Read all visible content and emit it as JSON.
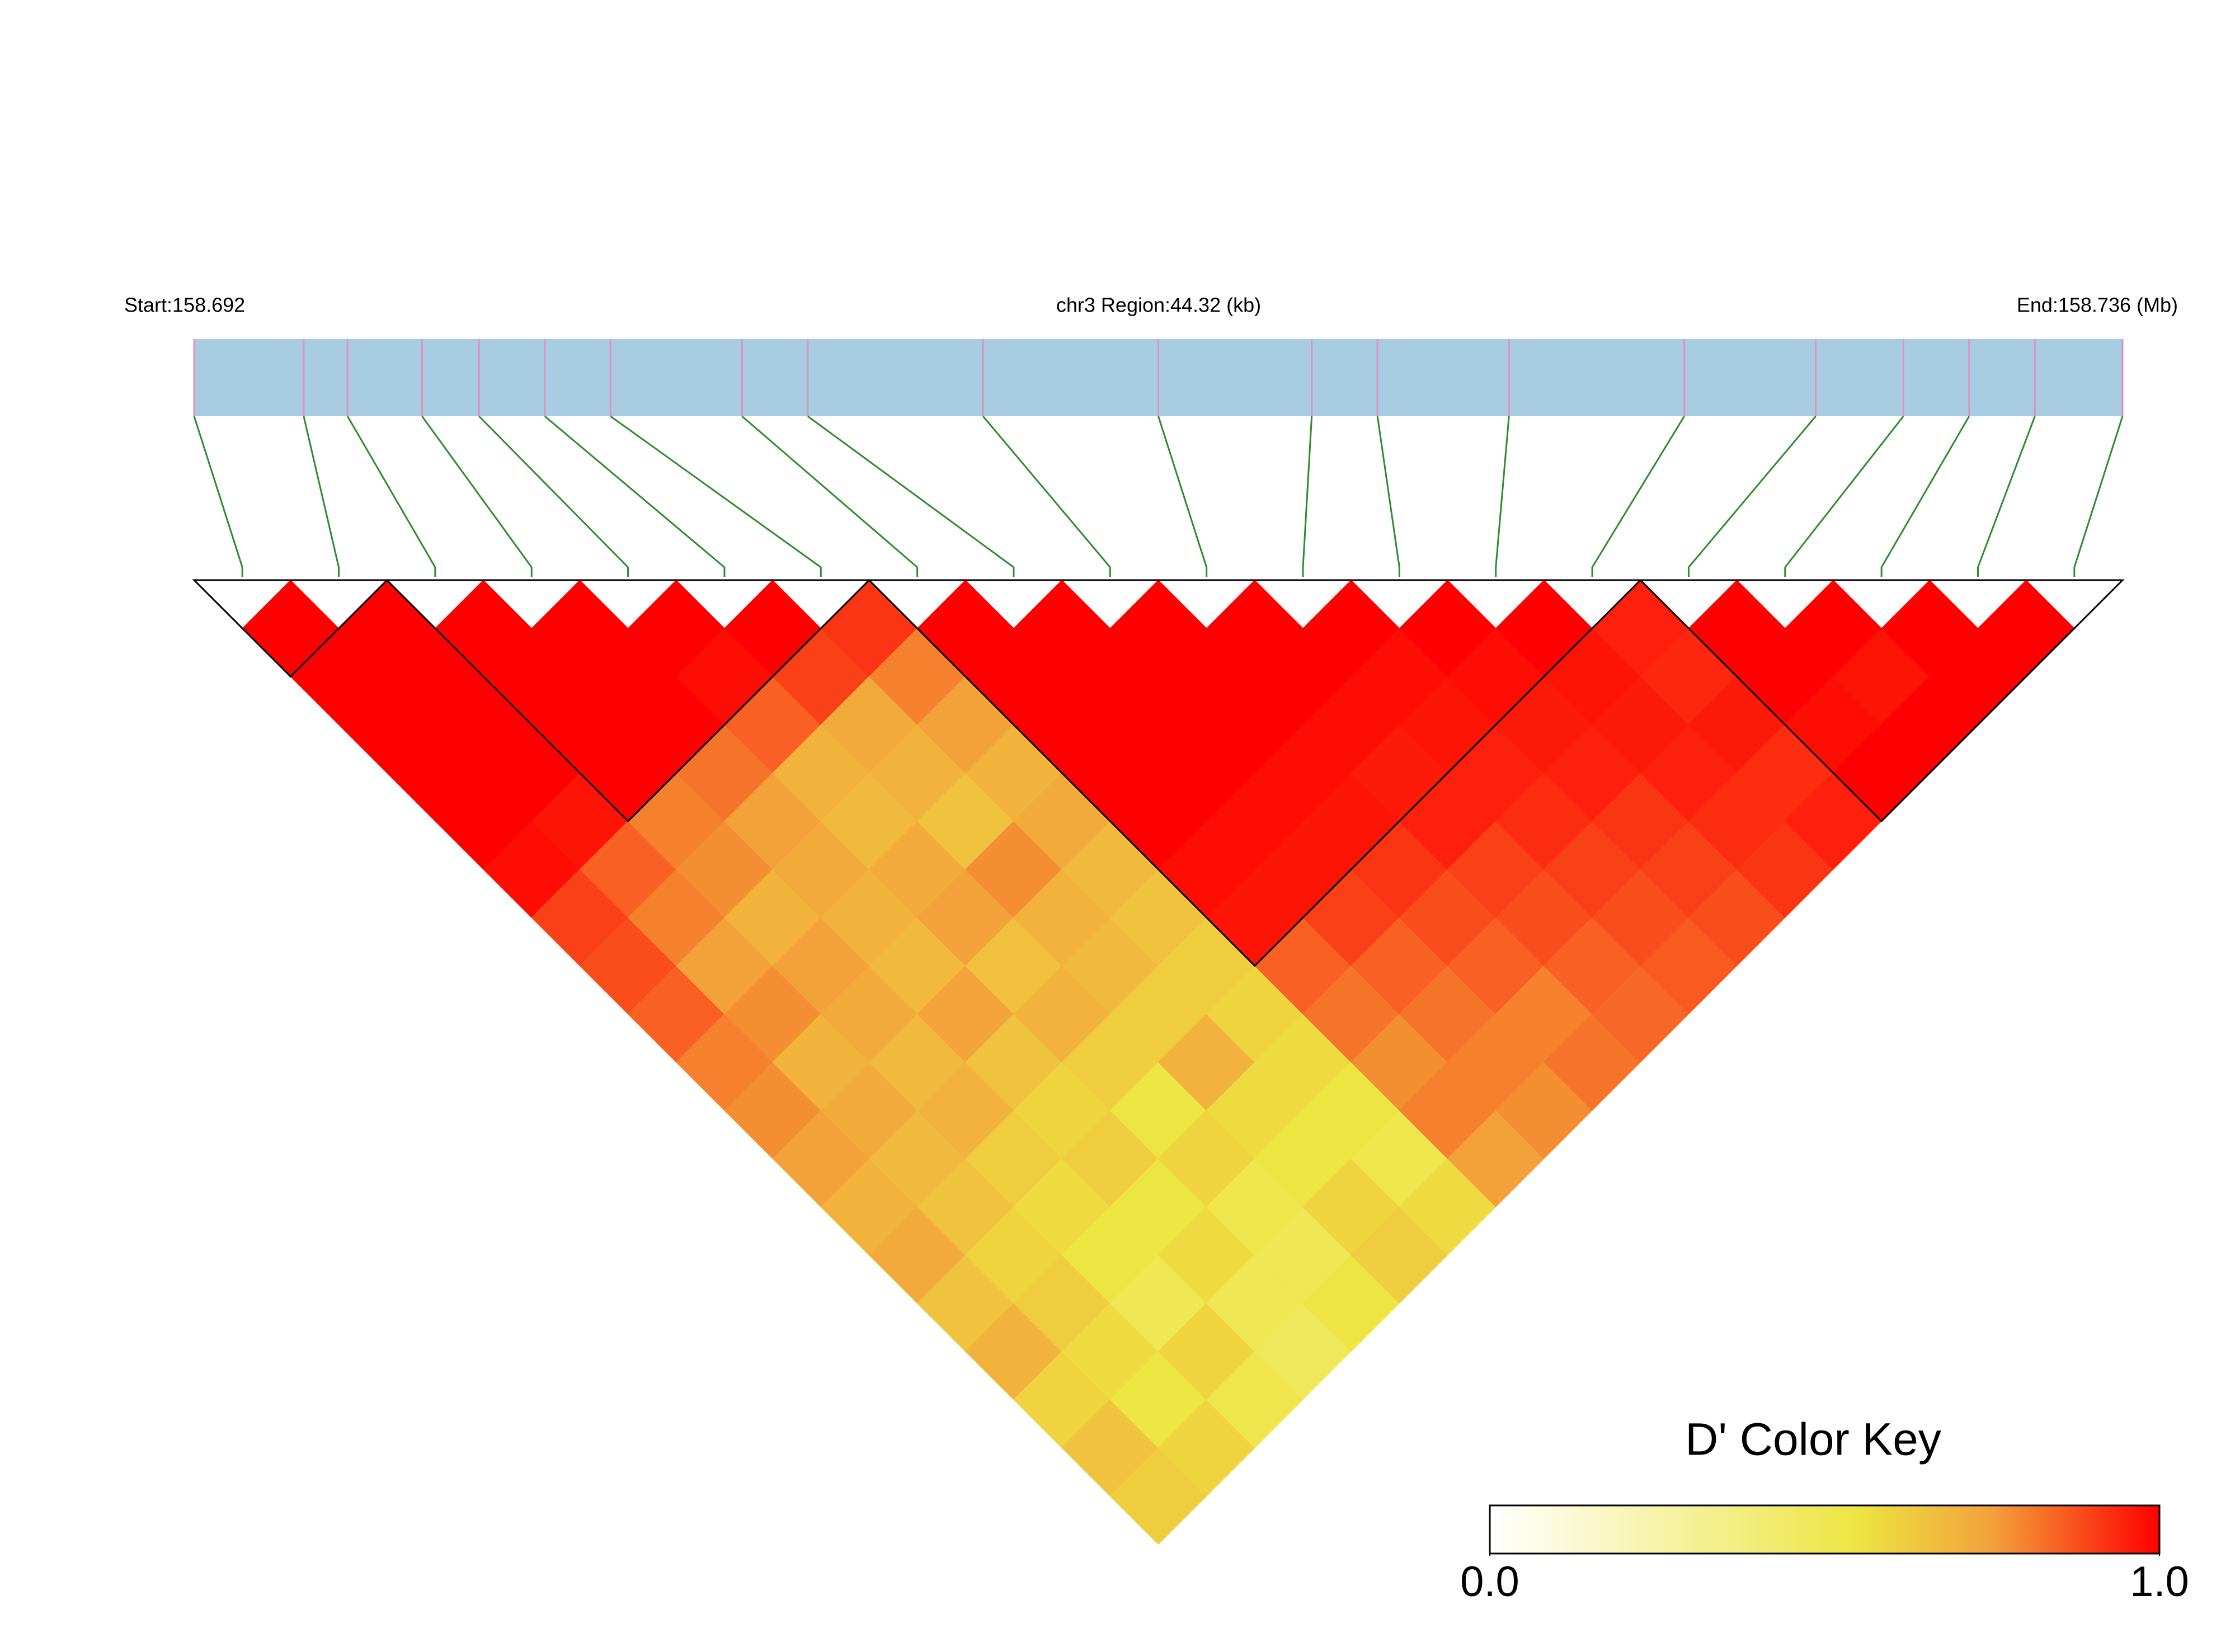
{
  "chart_data": {
    "type": "ld-heatmap",
    "start_label": "Start:158.692",
    "region_label": "chr3 Region:44.32 (kb)",
    "end_label": "End:158.736 (Mb)",
    "xlim": [
      158.692,
      158.736
    ],
    "snp_positions": [
      158.692,
      158.6945,
      158.6955,
      158.6972,
      158.6985,
      158.7,
      158.7015,
      158.7045,
      158.706,
      158.71,
      158.714,
      158.7175,
      158.719,
      158.722,
      158.726,
      158.729,
      158.731,
      158.7325,
      158.734,
      158.736
    ],
    "dprime": [
      [
        1,
        1,
        1,
        1,
        1,
        0.98,
        0.9,
        0.88,
        0.85,
        0.8,
        0.78,
        0.75,
        0.7,
        0.72,
        0.65,
        0.7,
        0.6,
        0.65,
        0.62
      ],
      [
        1,
        1,
        1,
        1,
        0.97,
        0.85,
        0.8,
        0.75,
        0.78,
        0.7,
        0.72,
        0.68,
        0.65,
        0.6,
        0.62,
        0.58,
        0.55,
        0.6
      ],
      [
        1,
        1,
        1,
        1,
        0.8,
        0.78,
        0.7,
        0.75,
        0.72,
        0.68,
        0.7,
        0.62,
        0.58,
        0.55,
        0.5,
        0.6,
        0.52
      ],
      [
        1,
        1,
        1,
        0.82,
        0.75,
        0.72,
        0.7,
        0.68,
        0.74,
        0.65,
        0.6,
        0.62,
        0.55,
        0.58,
        0.5,
        0.48
      ],
      [
        1,
        0.98,
        0.85,
        0.7,
        0.68,
        0.72,
        0.75,
        0.66,
        0.7,
        0.62,
        0.55,
        0.6,
        0.52,
        0.5,
        0.55
      ],
      [
        1,
        0.9,
        0.72,
        0.7,
        0.65,
        0.78,
        0.7,
        0.68,
        0.62,
        0.7,
        0.58,
        0.55,
        0.6,
        0.62
      ],
      [
        0.92,
        0.8,
        0.75,
        0.7,
        0.72,
        0.68,
        0.65,
        0.62,
        0.6,
        0.58,
        0.55,
        0.52,
        0.58
      ],
      [
        1,
        1,
        1,
        1,
        1,
        0.98,
        0.97,
        0.85,
        0.82,
        0.78,
        0.8,
        0.75
      ],
      [
        1,
        1,
        1,
        1,
        0.98,
        0.97,
        0.9,
        0.85,
        0.82,
        0.8,
        0.78
      ],
      [
        1,
        1,
        1,
        0.98,
        0.97,
        0.92,
        0.88,
        0.85,
        0.8,
        0.82
      ],
      [
        1,
        1,
        0.98,
        0.96,
        0.95,
        0.9,
        0.88,
        0.85,
        0.84
      ],
      [
        1,
        0.98,
        0.97,
        0.95,
        0.93,
        0.9,
        0.88,
        0.86
      ],
      [
        1,
        0.98,
        0.96,
        0.95,
        0.92,
        0.9,
        0.88
      ],
      [
        1,
        0.97,
        0.96,
        0.95,
        0.93,
        0.92
      ],
      [
        0.95,
        0.94,
        0.96,
        0.93,
        0.95
      ],
      [
        1,
        1,
        0.98,
        1
      ],
      [
        1,
        0.97,
        1
      ],
      [
        1,
        1
      ],
      [
        1
      ]
    ],
    "blocks": [
      [
        0,
        1
      ],
      [
        2,
        6
      ],
      [
        7,
        14
      ],
      [
        15,
        19
      ]
    ],
    "color_stops": [
      [
        0,
        "#ffffff"
      ],
      [
        0.55,
        "#ede542"
      ],
      [
        0.75,
        "#f3a13a"
      ],
      [
        1,
        "#ff0000"
      ]
    ],
    "legend_title": "D' Color Key",
    "legend_ticks": [
      {
        "value": 0,
        "label": "0.0"
      },
      {
        "value": 1,
        "label": "1.0"
      }
    ],
    "track_color": "#a8cde2",
    "snp_color": "#e08fc0",
    "connector_color": "#2e8b2e"
  }
}
